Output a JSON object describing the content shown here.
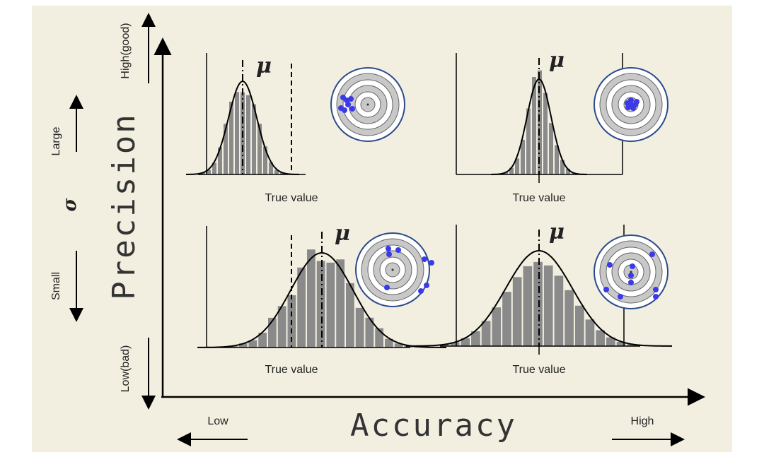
{
  "axes": {
    "y_top": "High(good)",
    "y_bottom": "Low(bad)",
    "sigma_large": "Large",
    "sigma": "σ",
    "sigma_small": "Small",
    "y_title": "Precision",
    "x_title": "Accuracy",
    "x_low": "Low",
    "x_high": "High"
  },
  "panels": [
    {
      "mu": "μ",
      "true_value": "True value"
    },
    {
      "mu": "μ",
      "true_value": "True value"
    },
    {
      "mu": "μ",
      "true_value": "True value"
    },
    {
      "mu": "μ",
      "true_value": "True value"
    }
  ]
}
